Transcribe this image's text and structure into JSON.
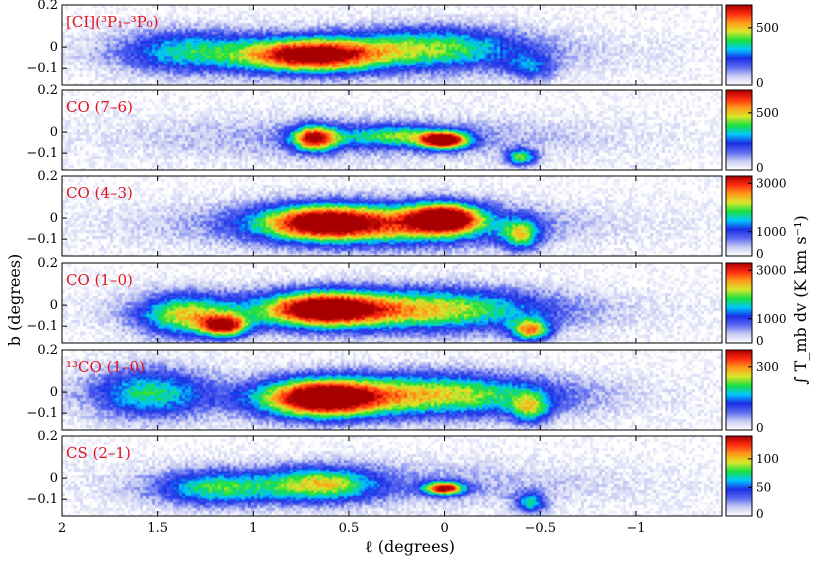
{
  "chart_data": {
    "type": "heatmap",
    "x_axis": {
      "label": "ℓ (degrees)",
      "range": [
        2.0,
        -1.45
      ],
      "ticks": [
        2,
        1.5,
        1,
        0.5,
        0,
        -0.5,
        -1
      ],
      "tick_labels": [
        "2",
        "1.5",
        "1",
        "0.5",
        "0",
        "−0.5",
        "−1"
      ]
    },
    "y_axis": {
      "label": "b (degrees)",
      "range": [
        -0.18,
        0.2
      ],
      "ticks": [
        0.2,
        0,
        -0.1
      ],
      "tick_labels": [
        "0.2",
        "0",
        "−0.1"
      ]
    },
    "colorbar_label": "∫ T_mb dv (K km s⁻¹)",
    "colormap": [
      "#ffffff",
      "#c8ccf2",
      "#5a6af0",
      "#1b2fe6",
      "#00c8ff",
      "#18e040",
      "#d8e82a",
      "#ff9a1a",
      "#ff2a10",
      "#a80000"
    ],
    "panels": [
      {
        "name": "[CI](³P₁–³P₀)",
        "colorbar_max": 700,
        "colorbar_ticks": [
          0,
          500
        ],
        "blobs": [
          {
            "l": 0.7,
            "b": -0.04,
            "wl": 0.35,
            "wb": 0.08,
            "v": 0.95
          },
          {
            "l": 0.05,
            "b": 0.0,
            "wl": 0.45,
            "wb": 0.1,
            "v": 0.45
          },
          {
            "l": 1.35,
            "b": -0.02,
            "wl": 0.35,
            "wb": 0.1,
            "v": 0.4
          },
          {
            "l": -0.45,
            "b": -0.1,
            "wl": 0.12,
            "wb": 0.06,
            "v": 0.3
          }
        ]
      },
      {
        "name": "CO (7–6)",
        "colorbar_max": 700,
        "colorbar_ticks": [
          0,
          500
        ],
        "blobs": [
          {
            "l": 0.68,
            "b": -0.03,
            "wl": 0.12,
            "wb": 0.06,
            "v": 0.85
          },
          {
            "l": 0.0,
            "b": -0.04,
            "wl": 0.12,
            "wb": 0.04,
            "v": 0.95
          },
          {
            "l": 0.25,
            "b": -0.02,
            "wl": 0.3,
            "wb": 0.05,
            "v": 0.45
          },
          {
            "l": -0.4,
            "b": -0.12,
            "wl": 0.08,
            "wb": 0.04,
            "v": 0.55
          }
        ]
      },
      {
        "name": "CO (4–3)",
        "colorbar_max": 3300,
        "colorbar_ticks": [
          0,
          1000,
          3000
        ],
        "colorbar_tick_labels": [
          "0",
          "1000",
          "3000"
        ],
        "blobs": [
          {
            "l": 0.0,
            "b": 0.0,
            "wl": 0.18,
            "wb": 0.07,
            "v": 0.9
          },
          {
            "l": 0.65,
            "b": -0.02,
            "wl": 0.3,
            "wb": 0.08,
            "v": 0.65
          },
          {
            "l": 0.35,
            "b": -0.03,
            "wl": 0.6,
            "wb": 0.1,
            "v": 0.55
          },
          {
            "l": -0.4,
            "b": -0.08,
            "wl": 0.1,
            "wb": 0.07,
            "v": 0.55
          }
        ]
      },
      {
        "name": "CO (1–0)",
        "colorbar_max": 3300,
        "colorbar_ticks": [
          0,
          1000,
          3000
        ],
        "colorbar_tick_labels": [
          "0",
          "1000",
          "3000"
        ],
        "blobs": [
          {
            "l": 0.65,
            "b": -0.02,
            "wl": 0.3,
            "wb": 0.08,
            "v": 0.9
          },
          {
            "l": 1.15,
            "b": -0.1,
            "wl": 0.12,
            "wb": 0.05,
            "v": 0.8
          },
          {
            "l": 1.35,
            "b": -0.05,
            "wl": 0.25,
            "wb": 0.1,
            "v": 0.6
          },
          {
            "l": -0.45,
            "b": -0.12,
            "wl": 0.1,
            "wb": 0.05,
            "v": 0.7
          },
          {
            "l": 0.1,
            "b": -0.02,
            "wl": 0.6,
            "wb": 0.1,
            "v": 0.55
          }
        ]
      },
      {
        "name": "¹³CO (1–0)",
        "colorbar_max": 380,
        "colorbar_ticks": [
          0,
          300
        ],
        "blobs": [
          {
            "l": 0.65,
            "b": -0.03,
            "wl": 0.3,
            "wb": 0.09,
            "v": 0.95
          },
          {
            "l": 0.05,
            "b": -0.01,
            "wl": 0.6,
            "wb": 0.1,
            "v": 0.55
          },
          {
            "l": 1.55,
            "b": 0.0,
            "wl": 0.3,
            "wb": 0.12,
            "v": 0.45
          },
          {
            "l": -0.45,
            "b": -0.08,
            "wl": 0.1,
            "wb": 0.07,
            "v": 0.45
          }
        ]
      },
      {
        "name": "CS (2–1)",
        "colorbar_max": 140,
        "colorbar_ticks": [
          0,
          50,
          100
        ],
        "blobs": [
          {
            "l": 0.0,
            "b": -0.05,
            "wl": 0.1,
            "wb": 0.03,
            "v": 0.95
          },
          {
            "l": 0.65,
            "b": -0.03,
            "wl": 0.28,
            "wb": 0.08,
            "v": 0.55
          },
          {
            "l": 1.2,
            "b": -0.05,
            "wl": 0.3,
            "wb": 0.08,
            "v": 0.45
          },
          {
            "l": -0.45,
            "b": -0.12,
            "wl": 0.08,
            "wb": 0.05,
            "v": 0.45
          }
        ]
      }
    ]
  }
}
